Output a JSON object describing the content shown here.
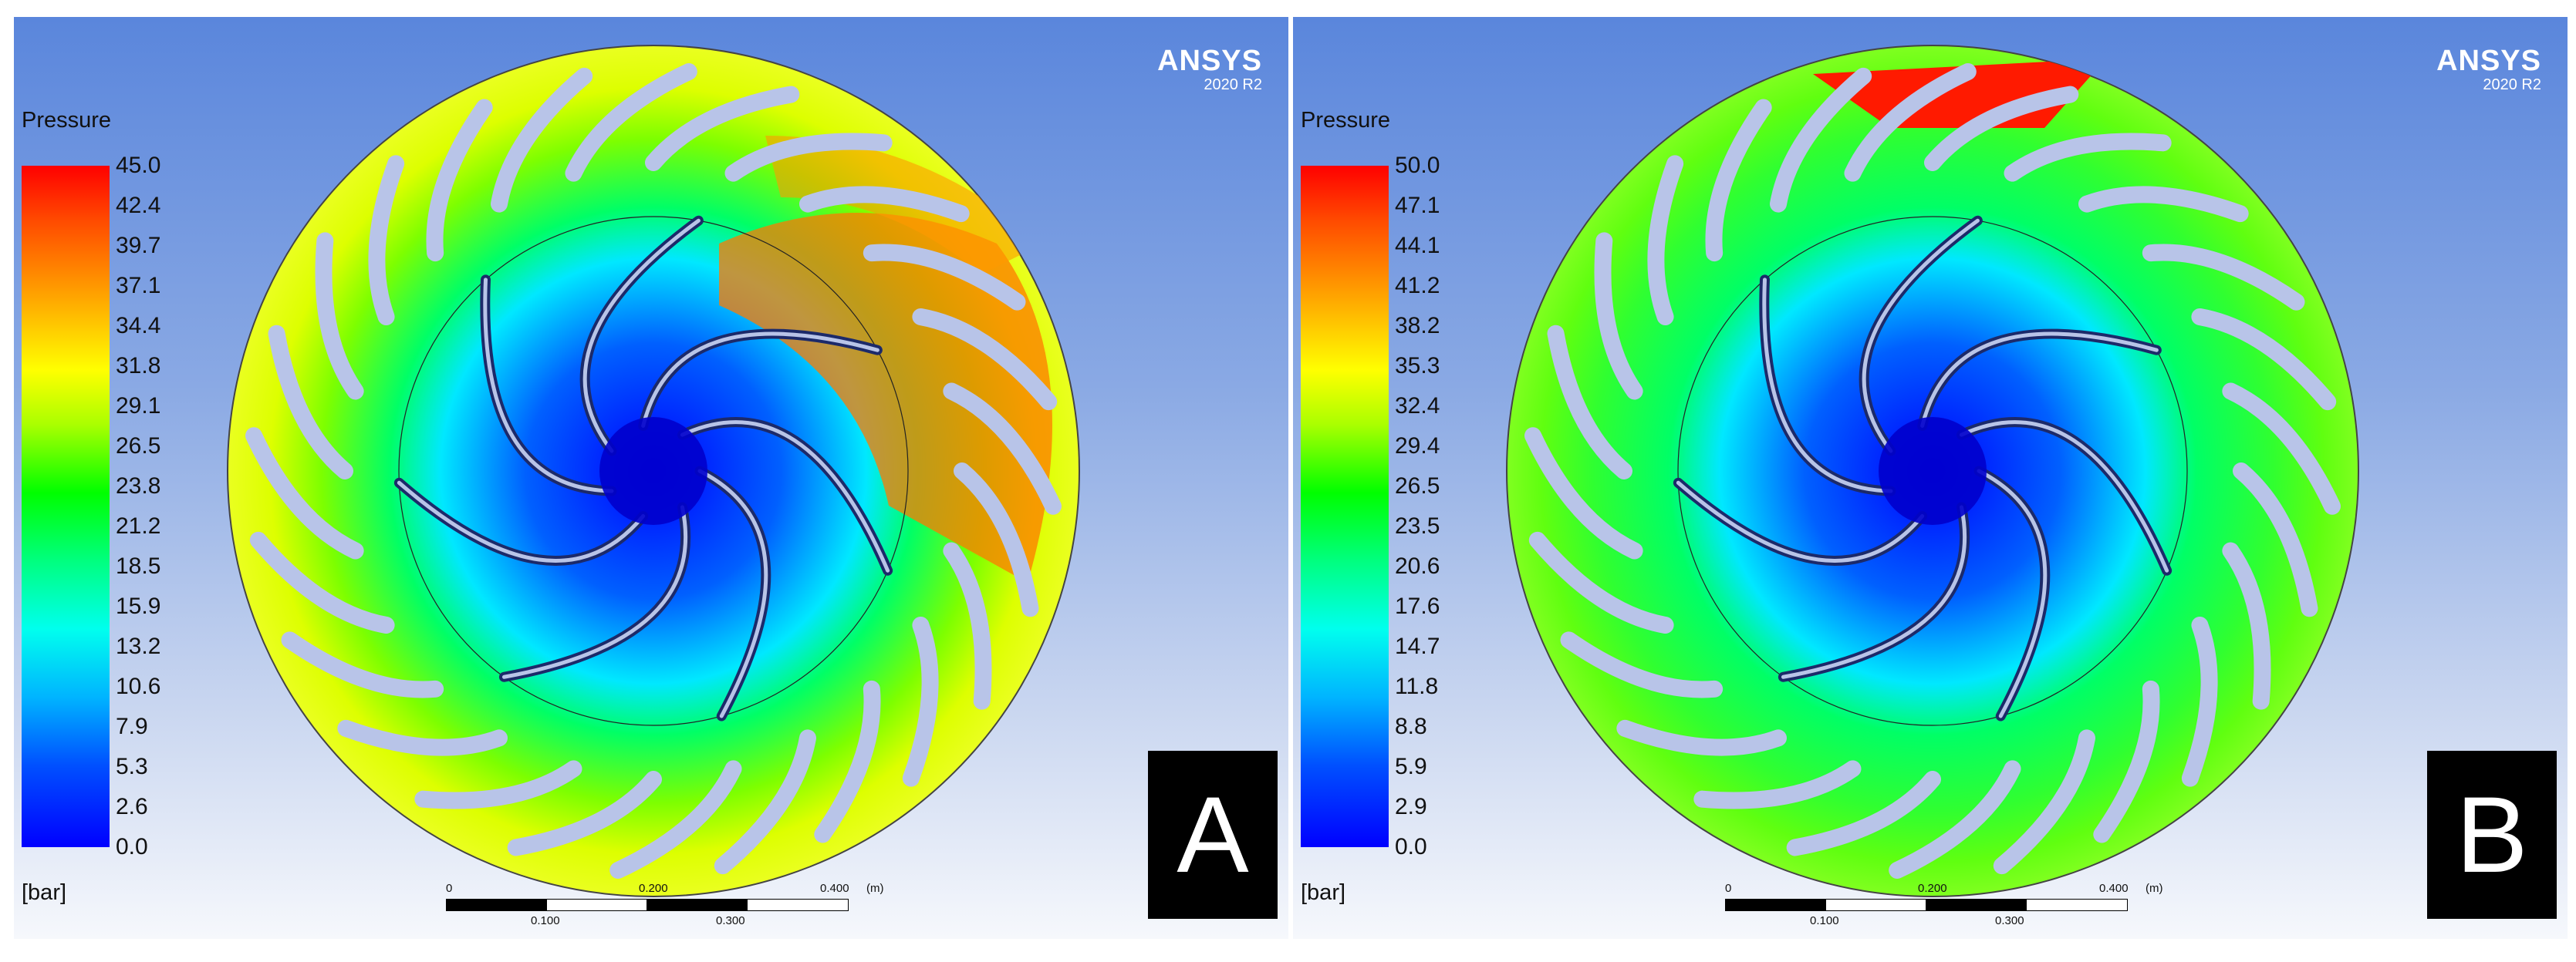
{
  "panels": [
    {
      "id": "A",
      "brand": {
        "name": "ANSYS",
        "version": "2020 R2"
      },
      "legend": {
        "title": "Pressure",
        "unit": "[bar]",
        "ticks": [
          "45.0",
          "42.4",
          "39.7",
          "37.1",
          "34.4",
          "31.8",
          "29.1",
          "26.5",
          "23.8",
          "21.2",
          "18.5",
          "15.9",
          "13.2",
          "10.6",
          "7.9",
          "5.3",
          "2.6",
          "0.0"
        ]
      },
      "scale_bar": {
        "top_labels": [
          "0",
          "0.200",
          "0.400",
          "(m)"
        ],
        "bottom_labels": [
          "0.100",
          "0.300"
        ]
      },
      "label": "A"
    },
    {
      "id": "B",
      "brand": {
        "name": "ANSYS",
        "version": "2020 R2"
      },
      "legend": {
        "title": "Pressure",
        "unit": "[bar]",
        "ticks": [
          "50.0",
          "47.1",
          "44.1",
          "41.2",
          "38.2",
          "35.3",
          "32.4",
          "29.4",
          "26.5",
          "23.5",
          "20.6",
          "17.6",
          "14.7",
          "11.8",
          "8.8",
          "5.9",
          "2.9",
          "0.0"
        ]
      },
      "scale_bar": {
        "top_labels": [
          "0",
          "0.200",
          "0.400",
          "(m)"
        ],
        "bottom_labels": [
          "0.100",
          "0.300"
        ]
      },
      "label": "B"
    }
  ]
}
